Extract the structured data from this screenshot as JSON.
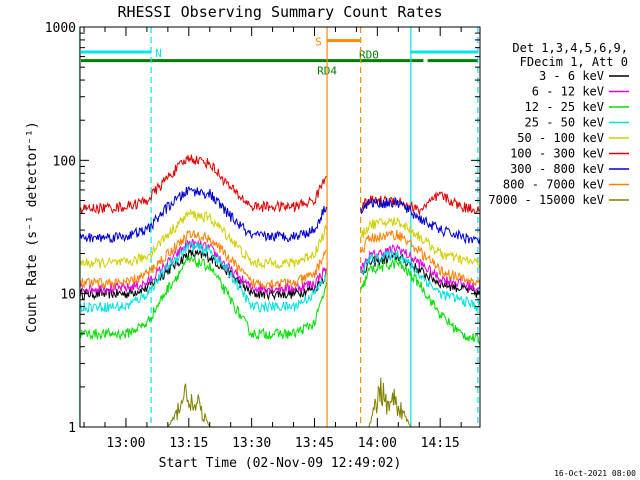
{
  "chart_data": {
    "type": "line",
    "title": "RHESSI Observing Summary Count Rates",
    "xlabel": "Start Time (02-Nov-09 12:49:02)",
    "ylabel": "Count Rate (s⁻¹ detector⁻¹)",
    "y_scale": "log",
    "ylim": [
      1,
      1000
    ],
    "xlim": [
      "12:49:02",
      "14:24:30"
    ],
    "x_ticks": [
      "13:00",
      "13:15",
      "13:30",
      "13:45",
      "14:00",
      "14:15"
    ],
    "y_ticks": [
      "1",
      "10",
      "100",
      "1000"
    ],
    "timestamp": "16-Oct-2021 08:00",
    "legend_placement": "right",
    "legend_header": [
      "Det 1,3,4,5,6,9,",
      "FDecim 1, Att 0"
    ],
    "flags": {
      "night": {
        "label": "N",
        "color": "#00e5ee",
        "y": 650,
        "segments": [
          [
            "12:49",
            "13:06"
          ],
          [
            "14:08",
            "14:24"
          ]
        ]
      },
      "saa": {
        "label": "S",
        "color": "#ff8c00",
        "y": 790,
        "segments": [
          [
            "13:48",
            "13:56"
          ]
        ]
      },
      "decimation": {
        "color": "#007f00",
        "y": 560,
        "segments": [
          [
            "12:49",
            "13:47"
          ],
          [
            "13:47",
            "13:56"
          ],
          [
            "13:56",
            "14:11"
          ],
          [
            "14:12",
            "14:24"
          ]
        ],
        "labels": [
          {
            "text": "RD4",
            "t": "13:48",
            "y": 470
          },
          {
            "text": "RD0",
            "t": "13:58",
            "y": 620
          }
        ]
      }
    },
    "vlines": [
      {
        "t": "12:49",
        "color": "#00e5ee",
        "dash": false
      },
      {
        "t": "13:06",
        "color": "#00e5ee",
        "dash": true
      },
      {
        "t": "13:48",
        "color": "#ff8c00",
        "dash": false
      },
      {
        "t": "13:56",
        "color": "#ff8c00",
        "dash": true
      },
      {
        "t": "14:08",
        "color": "#00e5ee",
        "dash": false
      },
      {
        "t": "14:24",
        "color": "#00e5ee",
        "dash": true
      }
    ],
    "gap": [
      "13:48",
      "13:56"
    ],
    "series": [
      {
        "name": "3 - 6 keV",
        "color": "#000000",
        "x": [
          "12:49",
          "13:00",
          "13:05",
          "13:10",
          "13:15",
          "13:20",
          "13:25",
          "13:30",
          "13:35",
          "13:40",
          "13:45",
          "13:48",
          "13:56",
          "13:58",
          "14:05",
          "14:10",
          "14:15",
          "14:20",
          "14:24"
        ],
        "y": [
          10,
          10,
          11,
          15,
          20,
          19,
          14,
          10,
          10,
          10,
          11,
          14,
          14,
          17,
          19,
          15,
          12,
          11,
          10
        ]
      },
      {
        "name": "6 - 12 keV",
        "color": "#e000e0",
        "x": [
          "12:49",
          "13:00",
          "13:05",
          "13:10",
          "13:15",
          "13:20",
          "13:25",
          "13:30",
          "13:35",
          "13:40",
          "13:45",
          "13:48",
          "13:56",
          "13:58",
          "14:05",
          "14:10",
          "14:15",
          "14:20",
          "14:24"
        ],
        "y": [
          11,
          11,
          12,
          17,
          24,
          22,
          15,
          11,
          11,
          11,
          12,
          16,
          15,
          19,
          22,
          17,
          13,
          12,
          11
        ]
      },
      {
        "name": "12 - 25 keV",
        "color": "#00e000",
        "x": [
          "12:49",
          "13:00",
          "13:05",
          "13:10",
          "13:15",
          "13:20",
          "13:25",
          "13:30",
          "13:35",
          "13:40",
          "13:45",
          "13:48",
          "13:56",
          "13:58",
          "14:05",
          "14:10",
          "14:15",
          "14:20",
          "14:24"
        ],
        "y": [
          5,
          5,
          6,
          11,
          18,
          16,
          9,
          5,
          5,
          5,
          6,
          12,
          10,
          15,
          17,
          12,
          7,
          5,
          4.5
        ]
      },
      {
        "name": "25 - 50 keV",
        "color": "#00e0e0",
        "x": [
          "12:49",
          "13:00",
          "13:05",
          "13:10",
          "13:15",
          "13:20",
          "13:25",
          "13:30",
          "13:35",
          "13:40",
          "13:45",
          "13:48",
          "13:56",
          "13:58",
          "14:05",
          "14:10",
          "14:15",
          "14:20",
          "14:24"
        ],
        "y": [
          8,
          8,
          10,
          16,
          23,
          21,
          14,
          8,
          8,
          8,
          10,
          14,
          14,
          18,
          20,
          14,
          10,
          9,
          8
        ]
      },
      {
        "name": "50 - 100 keV",
        "color": "#d0d000",
        "x": [
          "12:49",
          "13:00",
          "13:05",
          "13:10",
          "13:15",
          "13:20",
          "13:25",
          "13:30",
          "13:35",
          "13:40",
          "13:45",
          "13:48",
          "13:56",
          "13:58",
          "14:05",
          "14:10",
          "14:15",
          "14:20",
          "14:24"
        ],
        "y": [
          17,
          17,
          19,
          28,
          40,
          37,
          26,
          17,
          17,
          17,
          20,
          32,
          26,
          33,
          35,
          27,
          20,
          18,
          17
        ]
      },
      {
        "name": "100 - 300 keV",
        "color": "#e00000",
        "x": [
          "12:49",
          "13:00",
          "13:05",
          "13:10",
          "13:15",
          "13:20",
          "13:25",
          "13:30",
          "13:35",
          "13:40",
          "13:45",
          "13:48",
          "13:56",
          "13:58",
          "14:05",
          "14:10",
          "14:15",
          "14:20",
          "14:24"
        ],
        "y": [
          43,
          45,
          50,
          75,
          105,
          95,
          62,
          45,
          45,
          45,
          50,
          80,
          45,
          50,
          50,
          42,
          55,
          45,
          43
        ]
      },
      {
        "name": "300 - 800 keV",
        "color": "#0000d0",
        "x": [
          "12:49",
          "13:00",
          "13:05",
          "13:10",
          "13:15",
          "13:20",
          "13:25",
          "13:30",
          "13:35",
          "13:40",
          "13:45",
          "13:48",
          "13:56",
          "13:58",
          "14:05",
          "14:10",
          "14:15",
          "14:20",
          "14:24"
        ],
        "y": [
          26,
          27,
          30,
          45,
          60,
          56,
          38,
          27,
          27,
          27,
          30,
          48,
          42,
          48,
          48,
          37,
          30,
          27,
          25
        ]
      },
      {
        "name": "800 - 7000 keV",
        "color": "#ff8000",
        "x": [
          "12:49",
          "13:00",
          "13:05",
          "13:10",
          "13:15",
          "13:20",
          "13:25",
          "13:30",
          "13:35",
          "13:40",
          "13:45",
          "13:48",
          "13:56",
          "13:58",
          "14:05",
          "14:10",
          "14:15",
          "14:20",
          "14:24"
        ],
        "y": [
          12,
          12,
          14,
          20,
          28,
          26,
          18,
          12,
          12,
          12,
          14,
          22,
          20,
          26,
          28,
          21,
          15,
          13,
          12
        ]
      },
      {
        "name": "7000 - 15000 keV",
        "color": "#808000",
        "x": [
          "12:49",
          "13:10",
          "13:12",
          "13:13",
          "13:15",
          "13:16",
          "13:17",
          "13:20",
          "13:58",
          "14:00",
          "14:01",
          "14:03",
          "14:04",
          "14:05",
          "14:08",
          "14:24"
        ],
        "y": [
          1,
          1,
          1.3,
          1.8,
          2.2,
          1.4,
          1.7,
          1,
          1,
          1.8,
          2.4,
          1.5,
          2.0,
          1.6,
          1,
          1
        ]
      }
    ]
  }
}
